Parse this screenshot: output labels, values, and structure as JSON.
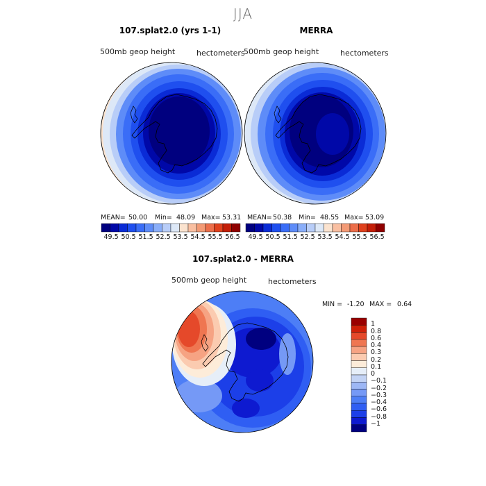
{
  "figure_title": "JJA",
  "colors": {
    "seq": [
      "#00007f",
      "#0008a8",
      "#0a2bd6",
      "#1f4fef",
      "#3a6df7",
      "#5e8cf8",
      "#8aaef9",
      "#b8cdf8",
      "#dde8f7",
      "#fbe3cf",
      "#f9bfa1",
      "#f39a75",
      "#ec6e4a",
      "#e0411d",
      "#c41e08",
      "#8f0000"
    ],
    "diff": [
      "#000080",
      "#0e1ad0",
      "#1c3fe8",
      "#2f5ef3",
      "#4d7ef6",
      "#7599f6",
      "#9db7f5",
      "#c3d3f4",
      "#e6eef8",
      "#fdecd9",
      "#fbcbb0",
      "#f6a383",
      "#ef7651",
      "#e5492a",
      "#cf2008",
      "#9a0000"
    ]
  },
  "panels": [
    {
      "title": "107.splat2.0 (yrs 1-1)",
      "left_label": "500mb  geop  height",
      "right_label": "hectometers",
      "stats": {
        "mean_label": "MEAN=",
        "mean": "50.00",
        "min_label": "Min=",
        "min": "48.09",
        "max_label": "Max=",
        "max": "53.31"
      }
    },
    {
      "title": "MERRA",
      "left_label": "500mb  geop  height",
      "right_label": "hectometers",
      "stats": {
        "mean_label": "MEAN=",
        "mean": "50.38",
        "min_label": "Min=",
        "min": "48.55",
        "max_label": "Max=",
        "max": "53.09"
      }
    }
  ],
  "diff_panel": {
    "title": "107.splat2.0 - MERRA",
    "left_label": "500mb  geop  height",
    "right_label": "hectometers",
    "min_label": "MIN =",
    "min": "-1.20",
    "max_label": "MAX =",
    "max": "0.64"
  },
  "chart_data": [
    {
      "type": "heatmap",
      "projection": "south-polar-stereographic",
      "variable": "500mb geop height",
      "units": "hectometers",
      "colorbar_levels": [
        49.5,
        50.5,
        51.5,
        52.5,
        53.5,
        54.5,
        55.5,
        56.5
      ],
      "colorbar_tick_labels": [
        "49.5",
        "50.5",
        "51.5",
        "52.5",
        "53.5",
        "54.5",
        "55.5",
        "56.5"
      ],
      "mean": 50.0,
      "min": 48.09,
      "max": 53.31
    },
    {
      "type": "heatmap",
      "projection": "south-polar-stereographic",
      "variable": "500mb geop height",
      "units": "hectometers",
      "colorbar_levels": [
        49.5,
        50.5,
        51.5,
        52.5,
        53.5,
        54.5,
        55.5,
        56.5
      ],
      "colorbar_tick_labels": [
        "49.5",
        "50.5",
        "51.5",
        "52.5",
        "53.5",
        "54.5",
        "55.5",
        "56.5"
      ],
      "mean": 50.38,
      "min": 48.55,
      "max": 53.09
    },
    {
      "type": "heatmap",
      "projection": "south-polar-stereographic",
      "variable": "500mb geop height",
      "units": "hectometers",
      "colorbar_levels": [
        -1,
        -0.8,
        -0.6,
        -0.4,
        -0.3,
        -0.2,
        -0.1,
        0,
        0.1,
        0.2,
        0.3,
        0.4,
        0.6,
        0.8,
        1
      ],
      "colorbar_tick_labels": [
        "1",
        "0.8",
        "0.6",
        "0.4",
        "0.3",
        "0.2",
        "0.1",
        "0",
        "−0.1",
        "−0.2",
        "−0.3",
        "−0.4",
        "−0.6",
        "−0.8",
        "−1"
      ],
      "min": -1.2,
      "max": 0.64
    }
  ]
}
